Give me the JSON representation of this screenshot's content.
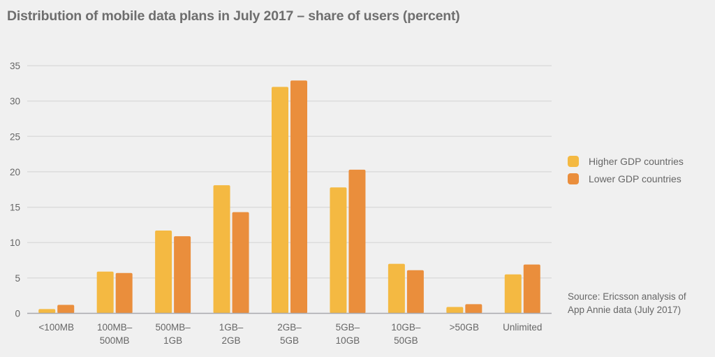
{
  "chart_data": {
    "type": "bar",
    "title": "Distribution of mobile data plans in July 2017 – share of users (percent)",
    "xlabel": "",
    "ylabel": "",
    "ylim": [
      0,
      35
    ],
    "yticks": [
      0,
      5,
      10,
      15,
      20,
      25,
      30,
      35
    ],
    "grid": true,
    "legend_position": "right",
    "categories": [
      [
        "<100MB"
      ],
      [
        "100MB–",
        "500MB"
      ],
      [
        "500MB–",
        "1GB"
      ],
      [
        "1GB–",
        "2GB"
      ],
      [
        "2GB–",
        "5GB"
      ],
      [
        "5GB–",
        "10GB"
      ],
      [
        "10GB–",
        "50GB"
      ],
      [
        ">50GB"
      ],
      [
        "Unlimited"
      ]
    ],
    "series": [
      {
        "name": "Higher GDP countries",
        "color": "#f4b942",
        "values": [
          0.6,
          5.9,
          11.7,
          18.1,
          32.0,
          17.8,
          7.0,
          0.9,
          5.5
        ]
      },
      {
        "name": "Lower GDP countries",
        "color": "#ea8e3c",
        "values": [
          1.2,
          5.7,
          10.9,
          14.3,
          32.9,
          20.3,
          6.1,
          1.3,
          6.9
        ]
      }
    ],
    "annotation": [
      "Source: Ericsson analysis of",
      "App Annie data (July 2017)"
    ]
  }
}
